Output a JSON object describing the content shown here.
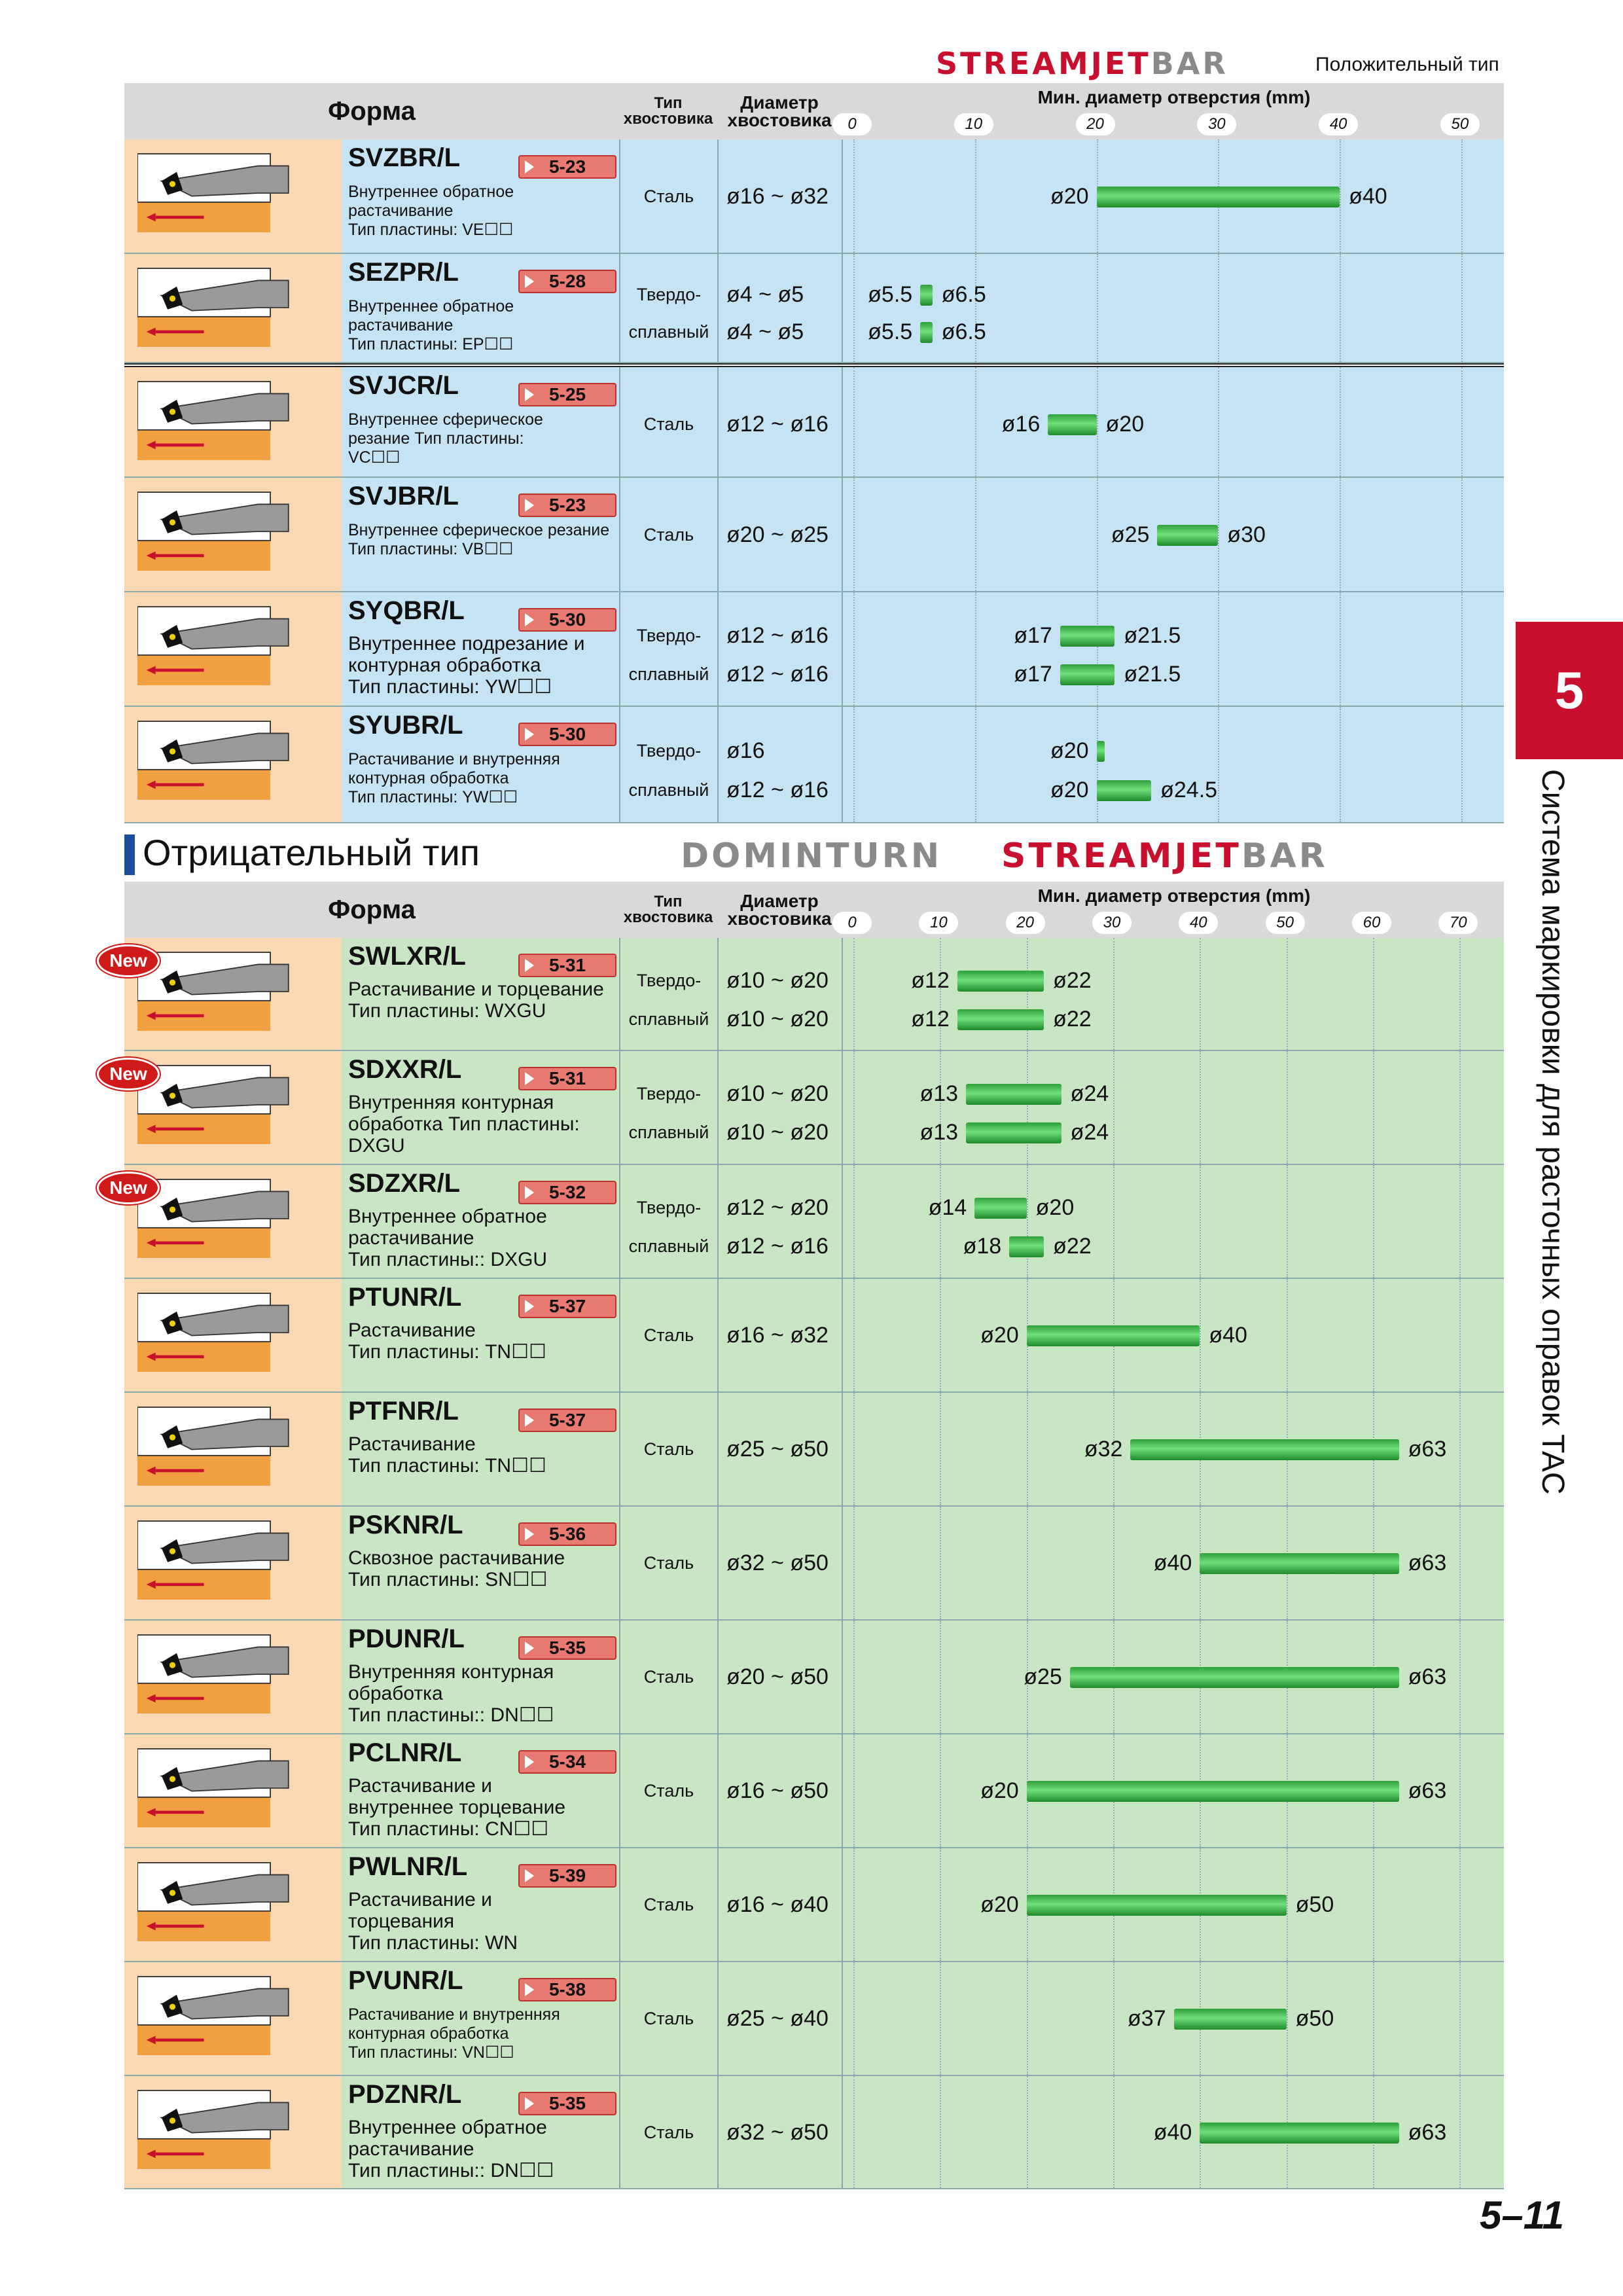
{
  "header": {
    "logo_top": "STREAMJETBAR",
    "logo_top_a": "STREAMJET",
    "logo_top_b": "BAR",
    "positive_label": "Положительный тип",
    "negative_title": "Отрицательный тип",
    "logo_domin": "DOMINTURN",
    "logo_stream_a": "STREAMJET",
    "logo_stream_b": "BAR"
  },
  "columns": {
    "forma": "Форма",
    "shank_type": "Тип хвостовика",
    "shank_type_l1": "Тип",
    "shank_type_l2": "хвостовика",
    "shank_dia_l1": "Диаметр",
    "shank_dia_l2": "хвостовика",
    "min_bore": "Мин. диаметр отверстия (mm)"
  },
  "positive_axis": {
    "ticks": [
      "0",
      "10",
      "20",
      "30",
      "40",
      "50"
    ],
    "min": 0,
    "max": 52
  },
  "negative_axis": {
    "ticks": [
      "0",
      "10",
      "20",
      "30",
      "40",
      "50",
      "60",
      "70"
    ],
    "min": 0,
    "max": 73
  },
  "positive_rows": [
    {
      "name": "SVZBR/L",
      "page": "5-23",
      "desc": [
        "Внутреннее обратное",
        "растачивание",
        "Тип пластины: VE☐☐"
      ],
      "small": true,
      "material": [
        "Сталь"
      ],
      "dia": [
        "ø16 ~ ø32"
      ],
      "bars": [
        [
          20,
          40,
          "ø20",
          "ø40"
        ]
      ]
    },
    {
      "name": "SEZPR/L",
      "page": "5-28",
      "desc": [
        "Внутреннее обратное",
        "растачивание",
        "Тип пластины: EP☐☐"
      ],
      "small": true,
      "material": [
        "Твердо-",
        "сплавный"
      ],
      "dia": [
        "ø4 ~ ø5",
        "ø4 ~ ø5"
      ],
      "bars": [
        [
          5.5,
          6.5,
          "ø5.5",
          "ø6.5"
        ],
        [
          5.5,
          6.5,
          "ø5.5",
          "ø6.5"
        ]
      ]
    },
    {
      "name": "SVJCR/L",
      "page": "5-25",
      "desc": [
        "Внутреннее сферическое",
        "резание Тип пластины:",
        "VC☐☐"
      ],
      "small": true,
      "material": [
        "Сталь"
      ],
      "dia": [
        "ø12 ~ ø16"
      ],
      "bars": [
        [
          16,
          20,
          "ø16",
          "ø20"
        ]
      ]
    },
    {
      "name": "SVJBR/L",
      "page": "5-23",
      "desc": [
        "Внутреннее сферическое резание",
        "Тип пластины: VB☐☐"
      ],
      "small": true,
      "material": [
        "Сталь"
      ],
      "dia": [
        "ø20 ~ ø25"
      ],
      "bars": [
        [
          25,
          30,
          "ø25",
          "ø30"
        ]
      ]
    },
    {
      "name": "SYQBR/L",
      "page": "5-30",
      "desc": [
        "Внутреннее подрезание и",
        "контурная обработка",
        "Тип пластины: YW☐☐"
      ],
      "small": false,
      "material": [
        "Твердо-",
        "сплавный"
      ],
      "dia": [
        "ø12 ~ ø16",
        "ø12 ~ ø16"
      ],
      "bars": [
        [
          17,
          21.5,
          "ø17",
          "ø21.5"
        ],
        [
          17,
          21.5,
          "ø17",
          "ø21.5"
        ]
      ]
    },
    {
      "name": "SYUBR/L",
      "page": "5-30",
      "desc": [
        "Растачивание и внутренняя",
        "контурная обработка",
        "Тип пластины: YW☐☐"
      ],
      "small": true,
      "material": [
        "Твердо-",
        "сплавный"
      ],
      "dia": [
        "ø16",
        "ø12 ~ ø16"
      ],
      "bars": [
        [
          20,
          20.6,
          "ø20",
          ""
        ],
        [
          20,
          24.5,
          "ø20",
          "ø24.5"
        ]
      ]
    }
  ],
  "negative_rows": [
    {
      "name": "SWLXR/L",
      "page": "5-31",
      "new": true,
      "desc": [
        "Растачивание и торцевание",
        "Тип пластины: WXGU"
      ],
      "material": [
        "Твердо-",
        "сплавный"
      ],
      "dia": [
        "ø10 ~ ø20",
        "ø10 ~ ø20"
      ],
      "bars": [
        [
          12,
          22,
          "ø12",
          "ø22"
        ],
        [
          12,
          22,
          "ø12",
          "ø22"
        ]
      ]
    },
    {
      "name": "SDXXR/L",
      "page": "5-31",
      "new": true,
      "desc": [
        "Внутренняя контурная",
        "обработка Тип пластины:",
        "DXGU"
      ],
      "material": [
        "Твердо-",
        "сплавный"
      ],
      "dia": [
        "ø10 ~ ø20",
        "ø10 ~ ø20"
      ],
      "bars": [
        [
          13,
          24,
          "ø13",
          "ø24"
        ],
        [
          13,
          24,
          "ø13",
          "ø24"
        ]
      ]
    },
    {
      "name": "SDZXR/L",
      "page": "5-32",
      "new": true,
      "desc": [
        "Внутреннее обратное",
        "растачивание",
        "Тип пластины:: DXGU"
      ],
      "material": [
        "Твердо-",
        "сплавный"
      ],
      "dia": [
        "ø12 ~ ø20",
        "ø12 ~ ø16"
      ],
      "bars": [
        [
          14,
          20,
          "ø14",
          "ø20"
        ],
        [
          18,
          22,
          "ø18",
          "ø22"
        ]
      ]
    },
    {
      "name": "PTUNR/L",
      "page": "5-37",
      "new": false,
      "desc": [
        "Растачивание",
        "Тип пластины: TN☐☐"
      ],
      "material": [
        "Сталь"
      ],
      "dia": [
        "ø16 ~ ø32"
      ],
      "bars": [
        [
          20,
          40,
          "ø20",
          "ø40"
        ]
      ]
    },
    {
      "name": "PTFNR/L",
      "page": "5-37",
      "new": false,
      "desc": [
        "Растачивание",
        "Тип пластины: TN☐☐"
      ],
      "material": [
        "Сталь"
      ],
      "dia": [
        "ø25 ~ ø50"
      ],
      "bars": [
        [
          32,
          63,
          "ø32",
          "ø63"
        ]
      ]
    },
    {
      "name": "PSKNR/L",
      "page": "5-36",
      "new": false,
      "desc": [
        "Сквозное растачивание",
        "Тип пластины: SN☐☐"
      ],
      "material": [
        "Сталь"
      ],
      "dia": [
        "ø32 ~ ø50"
      ],
      "bars": [
        [
          40,
          63,
          "ø40",
          "ø63"
        ]
      ]
    },
    {
      "name": "PDUNR/L",
      "page": "5-35",
      "new": false,
      "desc": [
        "Внутренняя контурная",
        "обработка",
        "Тип пластины:: DN☐☐"
      ],
      "material": [
        "Сталь"
      ],
      "dia": [
        "ø20 ~ ø50"
      ],
      "bars": [
        [
          25,
          63,
          "ø25",
          "ø63"
        ]
      ]
    },
    {
      "name": "PCLNR/L",
      "page": "5-34",
      "new": false,
      "desc": [
        "Растачивание и",
        "внутреннее торцевание",
        "Тип пластины: CN☐☐"
      ],
      "material": [
        "Сталь"
      ],
      "dia": [
        "ø16 ~ ø50"
      ],
      "bars": [
        [
          20,
          63,
          "ø20",
          "ø63"
        ]
      ]
    },
    {
      "name": "PWLNR/L",
      "page": "5-39",
      "new": false,
      "desc": [
        "Растачивание и",
        "торцевания",
        "Тип пластины: WN"
      ],
      "material": [
        "Сталь"
      ],
      "dia": [
        "ø16 ~ ø40"
      ],
      "bars": [
        [
          20,
          50,
          "ø20",
          "ø50"
        ]
      ]
    },
    {
      "name": "PVUNR/L",
      "page": "5-38",
      "new": false,
      "small": true,
      "desc": [
        "Растачивание и внутренняя",
        "контурная обработка",
        "Тип пластины: VN☐☐"
      ],
      "material": [
        "Сталь"
      ],
      "dia": [
        "ø25 ~ ø40"
      ],
      "bars": [
        [
          37,
          50,
          "ø37",
          "ø50"
        ]
      ]
    },
    {
      "name": "PDZNR/L",
      "page": "5-35",
      "new": false,
      "desc": [
        "Внутреннее обратное",
        "растачивание",
        "Тип пластины:: DN☐☐"
      ],
      "material": [
        "Сталь"
      ],
      "dia": [
        "ø32 ~ ø50"
      ],
      "bars": [
        [
          40,
          63,
          "ø40",
          "ø63"
        ]
      ]
    }
  ],
  "new_badge": "New",
  "side": {
    "chapter": "5",
    "title": "Система маркировки для расточных оправок TAC"
  },
  "page_number": "5–11"
}
